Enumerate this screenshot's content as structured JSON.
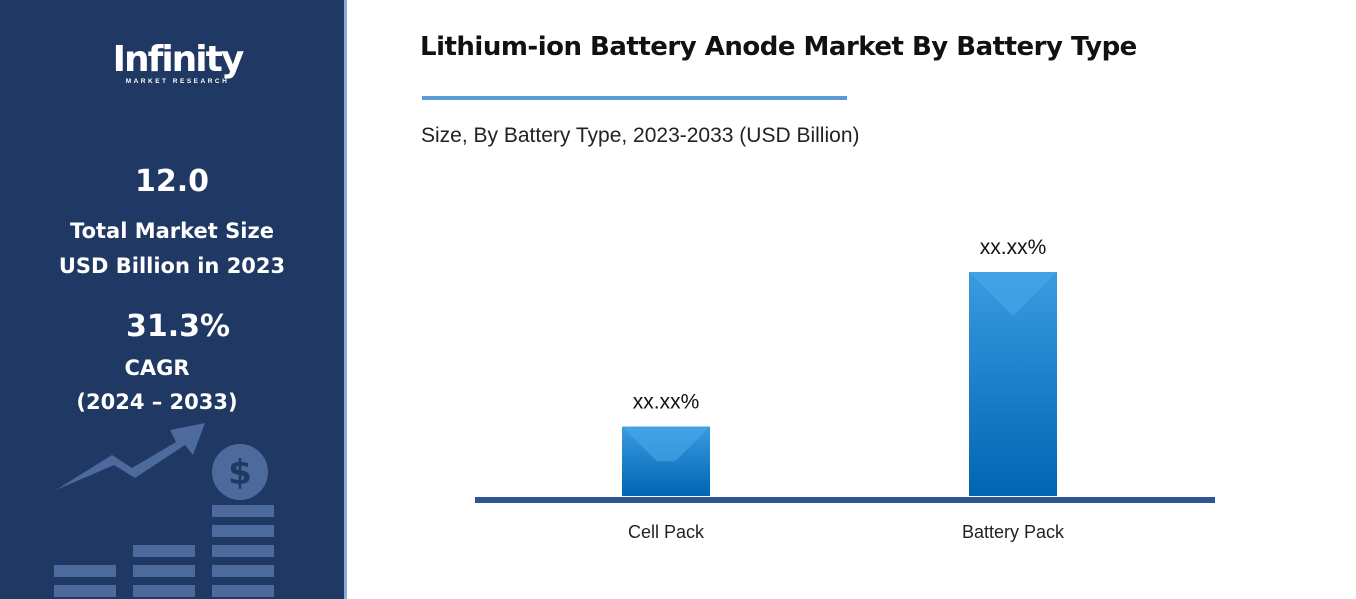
{
  "sidebar": {
    "logo": {
      "word": "Infinity",
      "tagline": "MARKET RESEARCH"
    },
    "market_size": "12.0",
    "market_size_label_1": "Total Market Size",
    "market_size_label_2": "USD Billion in 2023",
    "cagr": "31.3%",
    "cagr_label": "CAGR",
    "cagr_period": "(2024 – 2033)",
    "decoration_icon": "growth-chart-dollar-icon"
  },
  "colors": {
    "sidebar": "#203864",
    "bar": "#0070c0",
    "axis": "#2f5597",
    "accent": "#5b9bd5"
  },
  "chart_data": {
    "type": "bar",
    "title": "Lithium-ion Battery Anode Market By Battery Type",
    "subtitle": "Size, By Battery Type, 2023-2033 (USD Billion)",
    "categories": [
      "Cell Pack",
      "Battery Pack"
    ],
    "values_relative": [
      0.31,
      1.0
    ],
    "data_labels": [
      "xx.xx%",
      "xx.xx%"
    ],
    "grid": false,
    "legend": "none"
  }
}
